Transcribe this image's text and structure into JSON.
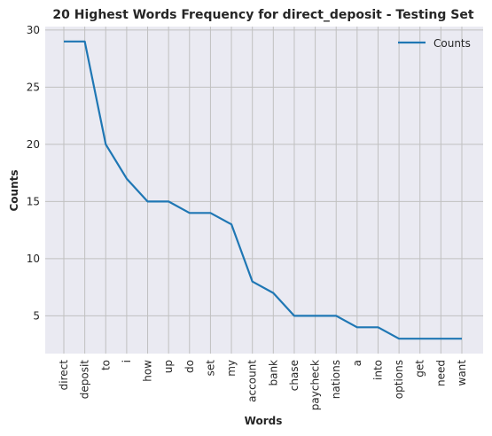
{
  "chart_data": {
    "type": "line",
    "title": "20 Highest Words Frequency for direct_deposit - Testing Set",
    "xlabel": "Words",
    "ylabel": "Counts",
    "categories": [
      "direct",
      "deposit",
      "to",
      "i",
      "how",
      "up",
      "do",
      "set",
      "my",
      "account",
      "bank",
      "chase",
      "paycheck",
      "nations",
      "a",
      "into",
      "options",
      "get",
      "need",
      "want"
    ],
    "series": [
      {
        "name": "Counts",
        "values": [
          29,
          29,
          20,
          17,
          15,
          15,
          14,
          14,
          13,
          8,
          7,
          5,
          5,
          5,
          4,
          4,
          3,
          3,
          3,
          3
        ]
      }
    ],
    "yticks": [
      5,
      10,
      15,
      20,
      25,
      30
    ],
    "ylim": [
      1.7,
      30.3
    ],
    "grid": true,
    "legend_position": "top-right",
    "colors": {
      "line": "#1f77b4",
      "plot_background": "#eaeaf2",
      "grid": "#c0c0c0"
    }
  }
}
